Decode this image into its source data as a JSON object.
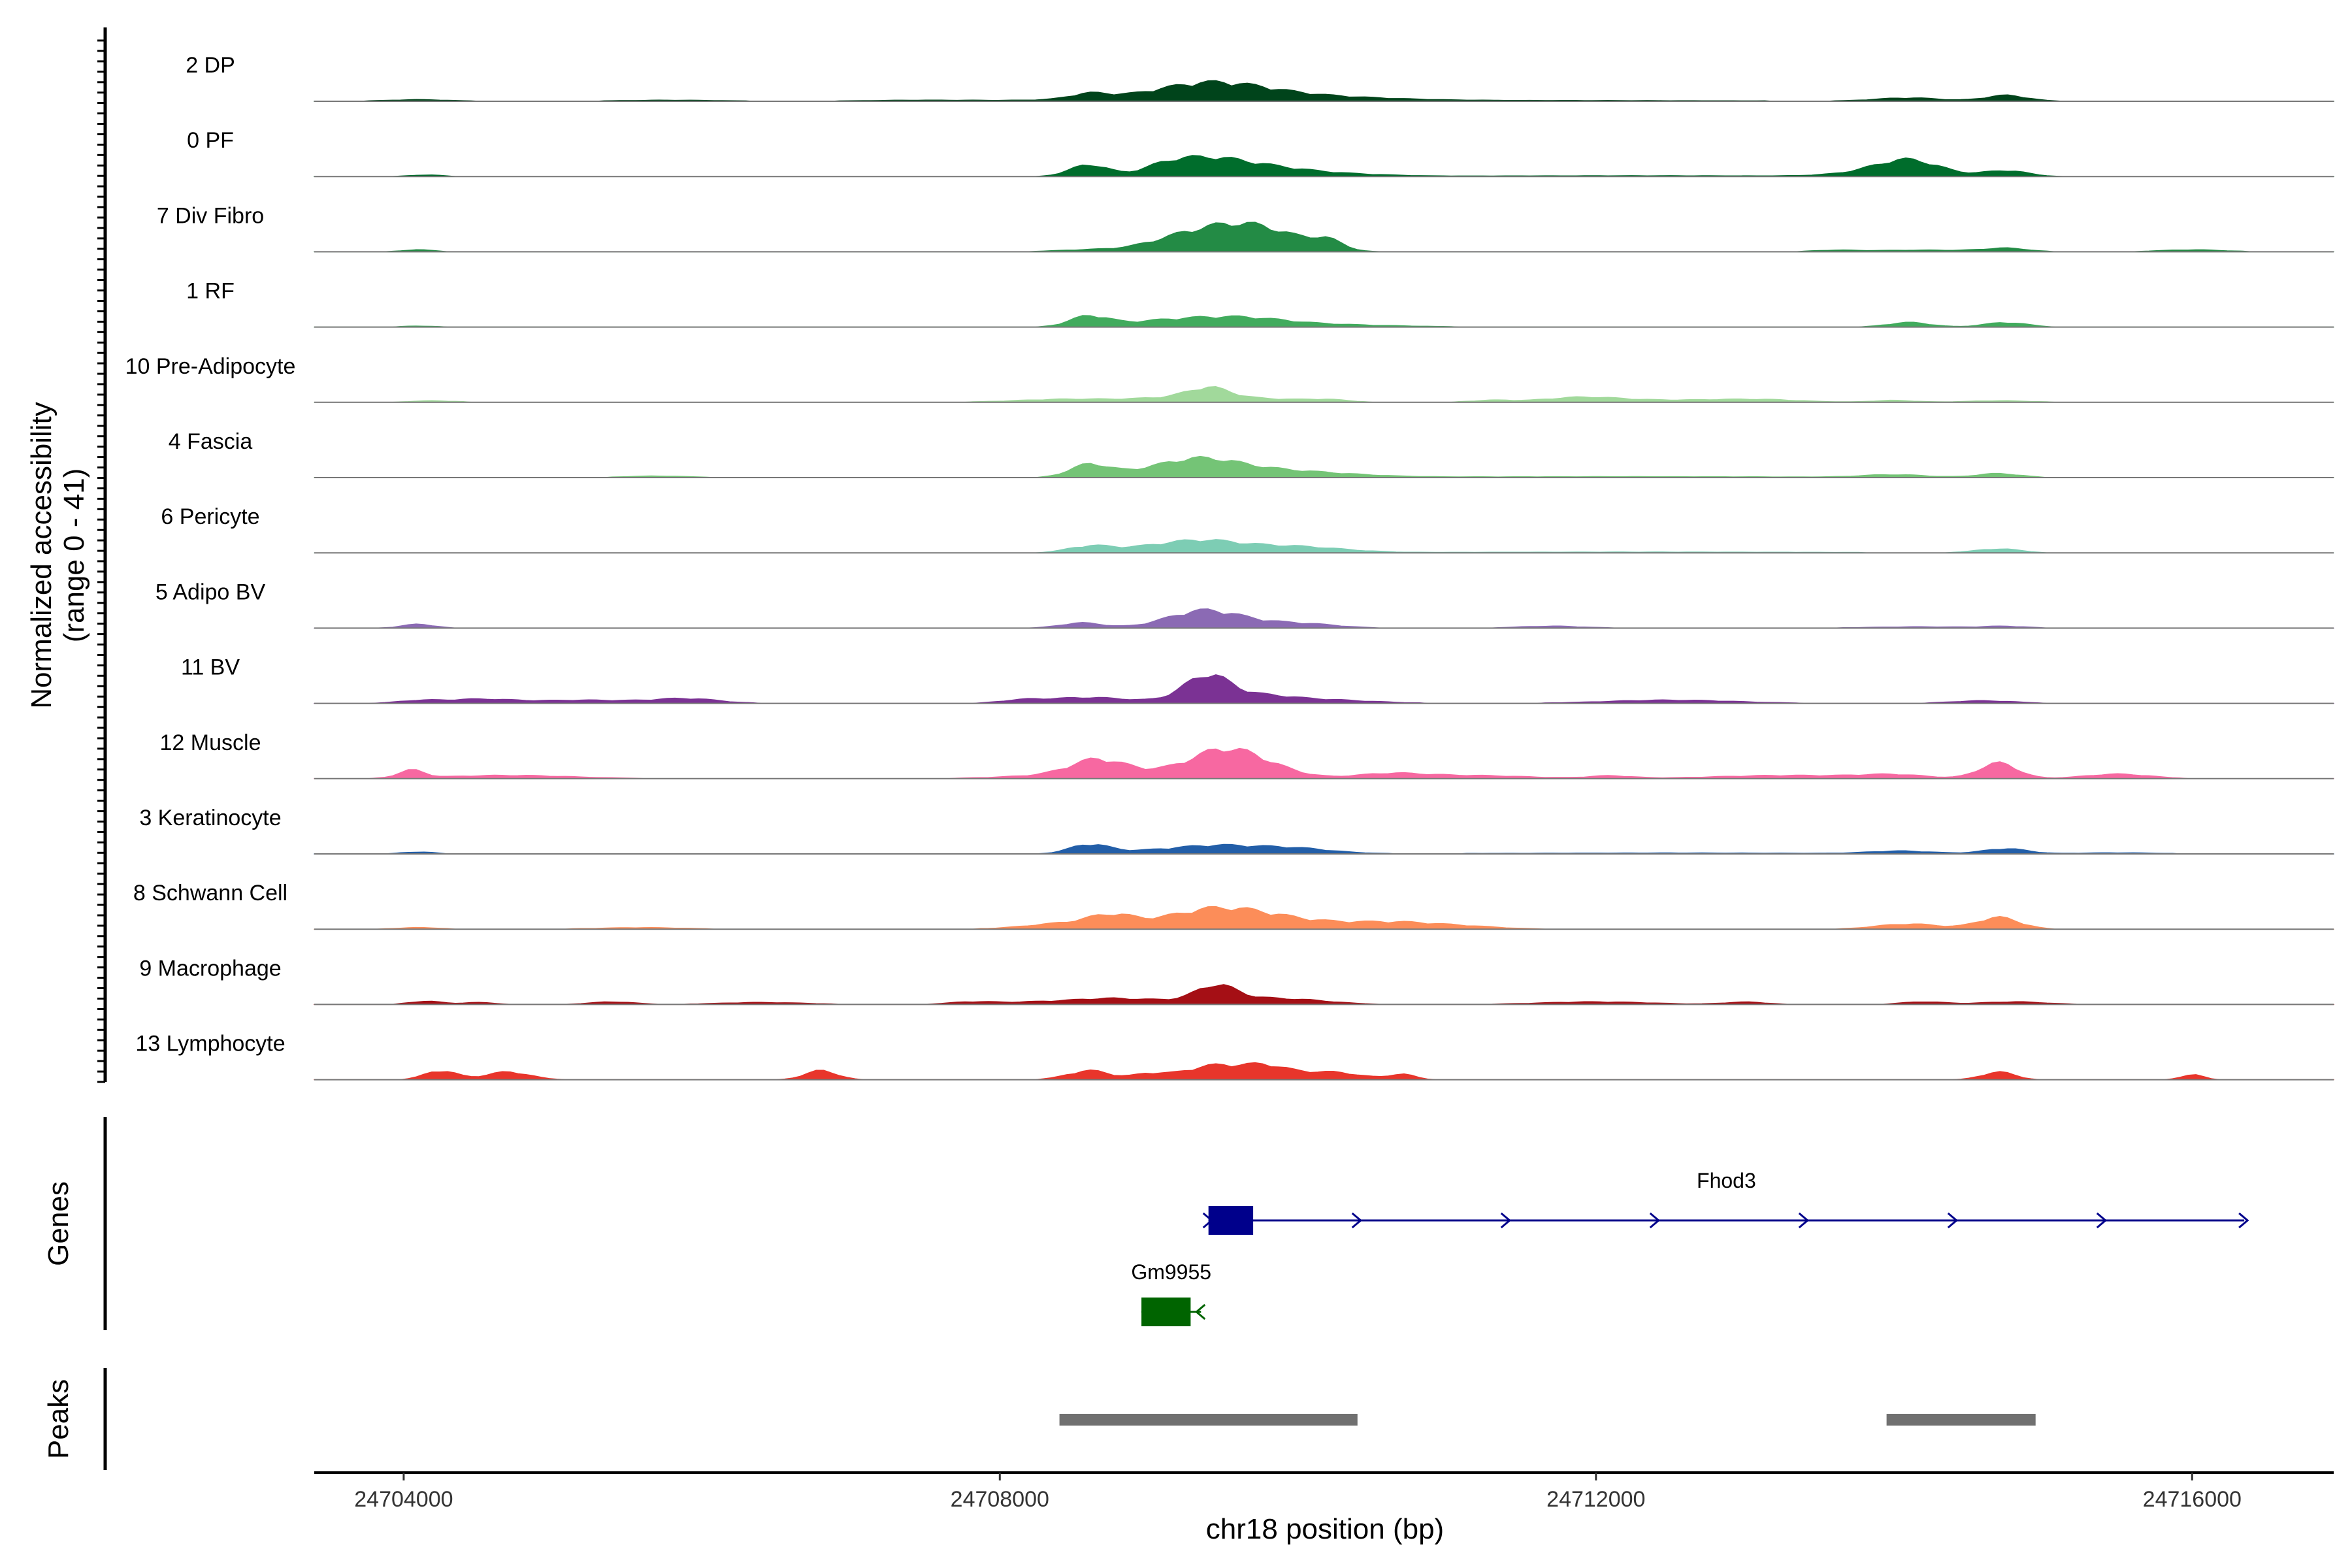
{
  "chart_data": {
    "type": "coverage-tracks",
    "chrom": "chr18",
    "xlim": [
      24703400,
      24716950
    ],
    "ylim": [
      0,
      41
    ],
    "ylabel": [
      "Normalized accessibility",
      "(range 0 - 41)"
    ],
    "xlabel": "chr18 position (bp)",
    "xticks": [
      24704000,
      24708000,
      24712000,
      24716000
    ],
    "tracks": [
      {
        "label": "2 DP",
        "color": "#00441b",
        "peaks": [
          [
            24704100,
            300,
            1.2
          ],
          [
            24705800,
            500,
            0.8
          ],
          [
            24707500,
            600,
            0.8
          ],
          [
            24708600,
            180,
            4
          ],
          [
            24709000,
            700,
            2.5
          ],
          [
            24709350,
            450,
            7
          ],
          [
            24709600,
            500,
            5
          ],
          [
            24709900,
            700,
            2.5
          ],
          [
            24710400,
            600,
            1
          ],
          [
            24711500,
            2000,
            0.6
          ],
          [
            24714100,
            300,
            2.5
          ],
          [
            24714750,
            200,
            4.5
          ]
        ]
      },
      {
        "label": "0 PF",
        "color": "#006d2c",
        "peaks": [
          [
            24704150,
            150,
            1.2
          ],
          [
            24708600,
            180,
            9
          ],
          [
            24709100,
            200,
            4
          ],
          [
            24709350,
            350,
            12
          ],
          [
            24709750,
            400,
            6
          ],
          [
            24710200,
            500,
            2
          ],
          [
            24712300,
            1500,
            0.6
          ],
          [
            24714100,
            300,
            12
          ],
          [
            24714750,
            200,
            4.5
          ],
          [
            24713800,
            350,
            2
          ]
        ]
      },
      {
        "label": "7 Div Fibro",
        "color": "#238b45",
        "peaks": [
          [
            24704100,
            150,
            1.5
          ],
          [
            24708600,
            300,
            1.5
          ],
          [
            24709250,
            350,
            12
          ],
          [
            24709600,
            300,
            14
          ],
          [
            24709900,
            300,
            10
          ],
          [
            24710200,
            150,
            7
          ],
          [
            24713600,
            200,
            1
          ],
          [
            24714200,
            500,
            1.3
          ],
          [
            24714750,
            200,
            2.5
          ],
          [
            24716000,
            300,
            1.5
          ]
        ]
      },
      {
        "label": "1 RF",
        "color": "#41ab5d",
        "peaks": [
          [
            24704100,
            150,
            0.8
          ],
          [
            24708600,
            180,
            8
          ],
          [
            24709100,
            400,
            4
          ],
          [
            24709600,
            400,
            5
          ],
          [
            24709900,
            800,
            2.5
          ],
          [
            24714100,
            200,
            3.5
          ],
          [
            24714750,
            200,
            3.5
          ]
        ]
      },
      {
        "label": "10 Pre-Adipocyte",
        "color": "#a1d99b",
        "peaks": [
          [
            24704200,
            200,
            1.2
          ],
          [
            24708500,
            500,
            2.5
          ],
          [
            24709100,
            300,
            2.5
          ],
          [
            24709400,
            200,
            9
          ],
          [
            24709700,
            400,
            3
          ],
          [
            24710200,
            200,
            1.8
          ],
          [
            24711300,
            200,
            1.5
          ],
          [
            24711900,
            350,
            3.5
          ],
          [
            24712500,
            600,
            1.5
          ],
          [
            24713100,
            400,
            1.8
          ],
          [
            24714000,
            200,
            1.5
          ],
          [
            24714700,
            300,
            1.2
          ]
        ]
      },
      {
        "label": "4 Fascia",
        "color": "#74c476",
        "peaks": [
          [
            24708600,
            180,
            9
          ],
          [
            24709000,
            400,
            4
          ],
          [
            24709350,
            350,
            10
          ],
          [
            24709700,
            500,
            5
          ],
          [
            24710200,
            500,
            2
          ],
          [
            24705700,
            300,
            1.2
          ],
          [
            24712200,
            1800,
            0.7
          ],
          [
            24714000,
            300,
            2
          ],
          [
            24714700,
            200,
            3
          ]
        ]
      },
      {
        "label": "6 Pericyte",
        "color": "#7dcdb4",
        "peaks": [
          [
            24708600,
            200,
            5
          ],
          [
            24709000,
            300,
            4
          ],
          [
            24709350,
            300,
            7
          ],
          [
            24709700,
            400,
            4
          ],
          [
            24710100,
            400,
            3
          ],
          [
            24712300,
            1800,
            0.6
          ],
          [
            24714700,
            200,
            3
          ]
        ]
      },
      {
        "label": "5 Adipo BV",
        "color": "#8b6ab4",
        "peaks": [
          [
            24704100,
            150,
            3
          ],
          [
            24708550,
            200,
            4
          ],
          [
            24709200,
            300,
            4
          ],
          [
            24709400,
            300,
            9
          ],
          [
            24709700,
            400,
            4
          ],
          [
            24710100,
            300,
            2
          ],
          [
            24711700,
            300,
            1.5
          ],
          [
            24714200,
            500,
            1
          ],
          [
            24714750,
            200,
            1.2
          ]
        ]
      },
      {
        "label": "11 BV",
        "color": "#7b3294",
        "peaks": [
          [
            24704100,
            200,
            2
          ],
          [
            24704500,
            300,
            3
          ],
          [
            24705200,
            500,
            2.5
          ],
          [
            24705900,
            300,
            3.5
          ],
          [
            24708150,
            200,
            2
          ],
          [
            24708600,
            400,
            4.5
          ],
          [
            24709300,
            250,
            5
          ],
          [
            24709400,
            200,
            16
          ],
          [
            24709700,
            300,
            5
          ],
          [
            24710100,
            500,
            3
          ],
          [
            24712500,
            600,
            2.5
          ],
          [
            24714600,
            300,
            2
          ]
        ]
      },
      {
        "label": "12 Muscle",
        "color": "#f768a1",
        "peaks": [
          [
            24704050,
            120,
            6
          ],
          [
            24704700,
            600,
            2.5
          ],
          [
            24708400,
            500,
            2.5
          ],
          [
            24708650,
            250,
            11
          ],
          [
            24709100,
            500,
            5
          ],
          [
            24709500,
            300,
            18
          ],
          [
            24709800,
            300,
            7
          ],
          [
            24710600,
            300,
            3
          ],
          [
            24711100,
            600,
            2.5
          ],
          [
            24712100,
            200,
            2
          ],
          [
            24713300,
            700,
            2.5
          ],
          [
            24714000,
            300,
            2.5
          ],
          [
            24714700,
            180,
            12
          ],
          [
            24715500,
            300,
            3.5
          ]
        ]
      },
      {
        "label": "3 Keratinocyte",
        "color": "#225ea8",
        "peaks": [
          [
            24704100,
            150,
            1.5
          ],
          [
            24708600,
            180,
            7
          ],
          [
            24709100,
            400,
            3
          ],
          [
            24709450,
            300,
            4
          ],
          [
            24709900,
            400,
            5
          ],
          [
            24712500,
            1500,
            0.7
          ],
          [
            24714050,
            300,
            2
          ],
          [
            24714750,
            200,
            4
          ],
          [
            24715500,
            400,
            0.8
          ]
        ]
      },
      {
        "label": "8 Schwann Cell",
        "color": "#fc8d59",
        "peaks": [
          [
            24704100,
            200,
            1.2
          ],
          [
            24705600,
            400,
            1.2
          ],
          [
            24708500,
            400,
            5
          ],
          [
            24708750,
            200,
            7
          ],
          [
            24709200,
            350,
            8
          ],
          [
            24709500,
            300,
            10
          ],
          [
            24709800,
            300,
            7
          ],
          [
            24710200,
            400,
            5
          ],
          [
            24710650,
            300,
            3
          ],
          [
            24711000,
            400,
            3
          ],
          [
            24714100,
            300,
            4
          ],
          [
            24714700,
            200,
            9
          ]
        ]
      },
      {
        "label": "9 Macrophage",
        "color": "#a50f15",
        "peaks": [
          [
            24704150,
            150,
            2.5
          ],
          [
            24704500,
            150,
            1.5
          ],
          [
            24705400,
            200,
            2
          ],
          [
            24706400,
            400,
            1.5
          ],
          [
            24707800,
            200,
            1.5
          ],
          [
            24708200,
            400,
            1.5
          ],
          [
            24708700,
            300,
            2
          ],
          [
            24709000,
            600,
            3
          ],
          [
            24709450,
            180,
            11
          ],
          [
            24709700,
            400,
            4
          ],
          [
            24710100,
            300,
            1.8
          ],
          [
            24712000,
            500,
            2
          ],
          [
            24713000,
            200,
            1.8
          ],
          [
            24714200,
            200,
            2
          ],
          [
            24714800,
            300,
            2
          ]
        ]
      },
      {
        "label": "13 Lymphocyte",
        "color": "#e8352b",
        "peaks": [
          [
            24704250,
            150,
            7
          ],
          [
            24704700,
            200,
            6
          ],
          [
            24706800,
            150,
            7
          ],
          [
            24708600,
            200,
            7
          ],
          [
            24709000,
            150,
            4
          ],
          [
            24709450,
            300,
            11
          ],
          [
            24709800,
            200,
            8
          ],
          [
            24710200,
            300,
            6
          ],
          [
            24710700,
            120,
            4
          ],
          [
            24714700,
            150,
            6
          ],
          [
            24716000,
            100,
            4
          ]
        ]
      }
    ],
    "genes": {
      "title": "Genes",
      "items": [
        {
          "name": "Fhod3",
          "start": 24709400,
          "end": 24716350,
          "strand": "+",
          "exon_start": 24709400,
          "exon_end": 24709700,
          "color": "#00008b"
        },
        {
          "name": "Gm9955",
          "start": 24708950,
          "end": 24709350,
          "strand": "-",
          "exon_start": 24708950,
          "exon_end": 24709280,
          "color": "#006400"
        }
      ]
    },
    "peaks_track": {
      "title": "Peaks",
      "color": "#707070",
      "regions": [
        [
          24708400,
          24710400
        ],
        [
          24713950,
          24714950
        ]
      ]
    }
  }
}
